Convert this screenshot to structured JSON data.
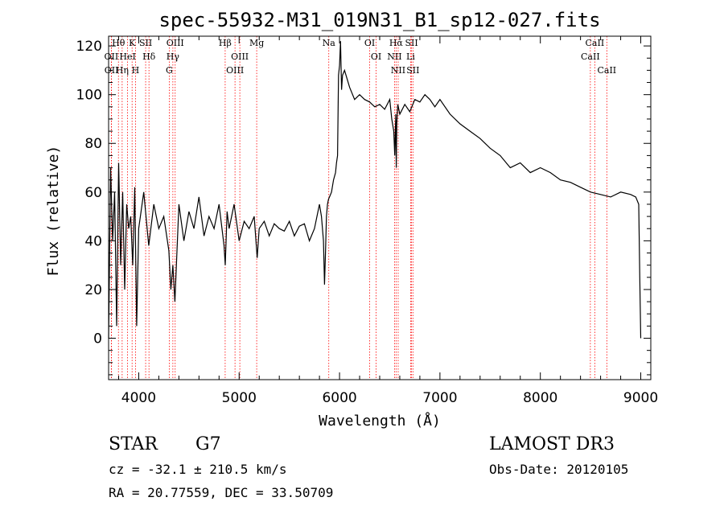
{
  "chart_data": {
    "type": "line",
    "title": "spec-55932-M31_019N31_B1_sp12-027.fits",
    "xlabel": "Wavelength (Å)",
    "ylabel": "Flux (relative)",
    "xlim": [
      3700,
      9100
    ],
    "ylim": [
      -17,
      124
    ],
    "xticks": [
      4000,
      5000,
      6000,
      7000,
      8000,
      9000
    ],
    "xtick_labels": [
      "4000",
      "5000",
      "6000",
      "7000",
      "8000",
      "9000"
    ],
    "yticks": [
      0,
      20,
      40,
      60,
      80,
      100,
      120
    ],
    "ytick_labels": [
      "0",
      "20",
      "40",
      "60",
      "80",
      "100",
      "120"
    ],
    "x_minor_step": 200,
    "y_minor_step": 5,
    "grid": false,
    "series": [
      {
        "name": "spectrum",
        "color": "#000000",
        "x": [
          3700,
          3720,
          3740,
          3760,
          3780,
          3800,
          3820,
          3840,
          3860,
          3880,
          3900,
          3920,
          3940,
          3960,
          3980,
          4000,
          4050,
          4100,
          4150,
          4200,
          4250,
          4300,
          4320,
          4340,
          4360,
          4400,
          4450,
          4500,
          4550,
          4600,
          4650,
          4700,
          4750,
          4800,
          4850,
          4862,
          4880,
          4900,
          4950,
          5000,
          5050,
          5100,
          5150,
          5180,
          5200,
          5250,
          5300,
          5350,
          5400,
          5450,
          5500,
          5550,
          5600,
          5650,
          5700,
          5750,
          5800,
          5820,
          5840,
          5850,
          5860,
          5870,
          5880,
          5890,
          5900,
          5920,
          5940,
          5960,
          5970,
          5980,
          5990,
          6000,
          6010,
          6020,
          6030,
          6050,
          6100,
          6150,
          6200,
          6250,
          6300,
          6350,
          6400,
          6450,
          6500,
          6520,
          6540,
          6550,
          6560,
          6565,
          6570,
          6580,
          6600,
          6650,
          6700,
          6750,
          6800,
          6850,
          6900,
          6950,
          7000,
          7100,
          7200,
          7300,
          7400,
          7500,
          7600,
          7700,
          7800,
          7900,
          8000,
          8100,
          8200,
          8300,
          8400,
          8500,
          8600,
          8700,
          8800,
          8900,
          8950,
          8980,
          8990,
          9000
        ],
        "y": [
          0,
          70,
          40,
          60,
          5,
          72,
          30,
          60,
          20,
          55,
          45,
          50,
          30,
          62,
          5,
          45,
          60,
          38,
          55,
          45,
          50,
          36,
          20,
          30,
          15,
          55,
          40,
          52,
          45,
          58,
          42,
          50,
          45,
          55,
          38,
          30,
          52,
          45,
          55,
          40,
          48,
          45,
          50,
          33,
          45,
          48,
          42,
          47,
          45,
          44,
          48,
          42,
          46,
          47,
          40,
          45,
          55,
          50,
          40,
          22,
          35,
          50,
          55,
          57,
          58,
          60,
          65,
          68,
          72,
          75,
          108,
          112,
          122,
          102,
          108,
          110,
          103,
          98,
          100,
          98,
          97,
          95,
          96,
          94,
          98,
          90,
          85,
          75,
          92,
          70,
          88,
          96,
          92,
          96,
          93,
          98,
          97,
          100,
          98,
          95,
          98,
          92,
          88,
          85,
          82,
          78,
          75,
          70,
          72,
          68,
          70,
          68,
          65,
          64,
          62,
          60,
          59,
          58,
          60,
          59,
          58,
          55,
          25,
          0
        ]
      }
    ],
    "line_markers": [
      {
        "label": "Hθ",
        "x": 3798,
        "color": "#ff0000"
      },
      {
        "label": "OII",
        "x": 3727,
        "color": "#ff0000"
      },
      {
        "label": "OII",
        "x": 3729,
        "color": "#ff0000"
      },
      {
        "label": "Hη",
        "x": 3835,
        "color": "#ff0000"
      },
      {
        "label": "HeI",
        "x": 3889,
        "color": "#ff0000"
      },
      {
        "label": "K",
        "x": 3934,
        "color": "#ff0000"
      },
      {
        "label": "H",
        "x": 3968,
        "color": "#ff0000"
      },
      {
        "label": "SII",
        "x": 4069,
        "color": "#ff0000"
      },
      {
        "label": "Hδ",
        "x": 4102,
        "color": "#ff0000"
      },
      {
        "label": "OIII",
        "x": 4363,
        "color": "#ff0000"
      },
      {
        "label": "Hγ",
        "x": 4340,
        "color": "#ff0000"
      },
      {
        "label": "G",
        "x": 4304,
        "color": "#ff0000"
      },
      {
        "label": "Hβ",
        "x": 4861,
        "color": "#ff0000"
      },
      {
        "label": "OIII",
        "x": 5007,
        "color": "#ff0000"
      },
      {
        "label": "OIII",
        "x": 4959,
        "color": "#ff0000"
      },
      {
        "label": "Mg",
        "x": 5175,
        "color": "#ff0000"
      },
      {
        "label": "Na",
        "x": 5893,
        "color": "#ff0000"
      },
      {
        "label": "OI",
        "x": 6300,
        "color": "#ff0000"
      },
      {
        "label": "OI",
        "x": 6364,
        "color": "#ff0000"
      },
      {
        "label": "Hα",
        "x": 6563,
        "color": "#ff0000"
      },
      {
        "label": "NII",
        "x": 6548,
        "color": "#ff0000"
      },
      {
        "label": "NII",
        "x": 6584,
        "color": "#ff0000"
      },
      {
        "label": "SII",
        "x": 6717,
        "color": "#ff0000"
      },
      {
        "label": "Li",
        "x": 6708,
        "color": "#ff0000"
      },
      {
        "label": "SII",
        "x": 6731,
        "color": "#ff0000"
      },
      {
        "label": "CaII",
        "x": 8542,
        "color": "#ff0000"
      },
      {
        "label": "CaII",
        "x": 8498,
        "color": "#ff0000"
      },
      {
        "label": "CaII",
        "x": 8662,
        "color": "#ff0000"
      }
    ]
  },
  "info": {
    "class_label": "STAR",
    "subclass_label": "G7",
    "survey": "LAMOST DR3",
    "redshift_line": "cz = -32.1 ± 210.5 km/s",
    "obs_date_line": "Obs-Date: 20120105",
    "coords_line": "RA =  20.77559, DEC =  33.50709"
  }
}
